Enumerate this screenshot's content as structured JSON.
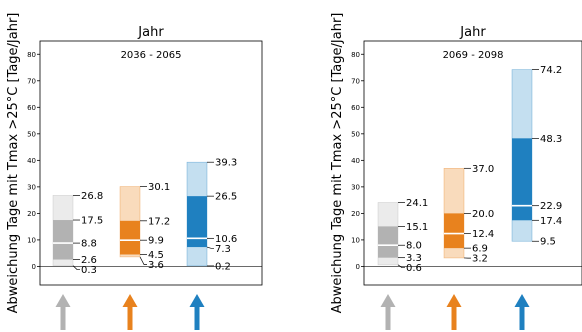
{
  "chart_data": [
    {
      "type": "bar",
      "title": "Jahr",
      "period": "2036 - 2065",
      "ylabel": "Abweichung Tage mit Tmax >25°C [Tage/Jahr]",
      "ylim": [
        -7,
        85
      ],
      "yticks": [
        0,
        10,
        20,
        30,
        40,
        50,
        60,
        70,
        80
      ],
      "grid": false,
      "series": [
        {
          "color": "#b2b2b2",
          "light_color": "#ebebeb",
          "whisker_low": 0.3,
          "box_low": 2.6,
          "median": 8.8,
          "box_high": 17.5,
          "whisker_high": 26.8,
          "labels": [
            "26.8",
            "17.5",
            "8.8",
            "2.6",
            "0.3"
          ]
        },
        {
          "color": "#e8821e",
          "light_color": "#f9dbbc",
          "whisker_low": 3.6,
          "box_low": 4.5,
          "median": 9.9,
          "box_high": 17.2,
          "whisker_high": 30.1,
          "labels": [
            "30.1",
            "17.2",
            "9.9",
            "4.5",
            "3.6"
          ]
        },
        {
          "color": "#1f80c0",
          "light_color": "#c4dff0",
          "whisker_low": 0.2,
          "box_low": 7.3,
          "median": 10.6,
          "box_high": 26.5,
          "whisker_high": 39.3,
          "labels": [
            "39.3",
            "26.5",
            "10.6",
            "7.3",
            "0.2"
          ]
        }
      ]
    },
    {
      "type": "bar",
      "title": "Jahr",
      "period": "2069 - 2098",
      "ylabel": "Abweichung Tage mit Tmax >25°C [Tage/Jahr]",
      "ylim": [
        -7,
        85
      ],
      "yticks": [
        0,
        10,
        20,
        30,
        40,
        50,
        60,
        70,
        80
      ],
      "grid": false,
      "series": [
        {
          "color": "#b2b2b2",
          "light_color": "#ebebeb",
          "whisker_low": 0.6,
          "box_low": 3.3,
          "median": 8.0,
          "box_high": 15.1,
          "whisker_high": 24.1,
          "labels": [
            "24.1",
            "15.1",
            "8.0",
            "3.3",
            "0.6"
          ]
        },
        {
          "color": "#e8821e",
          "light_color": "#f9dbbc",
          "whisker_low": 3.2,
          "box_low": 6.9,
          "median": 12.4,
          "box_high": 20.0,
          "whisker_high": 37.0,
          "labels": [
            "37.0",
            "20.0",
            "12.4",
            "6.9",
            "3.2"
          ]
        },
        {
          "color": "#1f80c0",
          "light_color": "#c4dff0",
          "whisker_low": 9.5,
          "box_low": 17.4,
          "median": 22.9,
          "box_high": 48.3,
          "whisker_high": 74.2,
          "labels": [
            "74.2",
            "48.3",
            "22.9",
            "17.4",
            "9.5"
          ]
        }
      ]
    }
  ]
}
